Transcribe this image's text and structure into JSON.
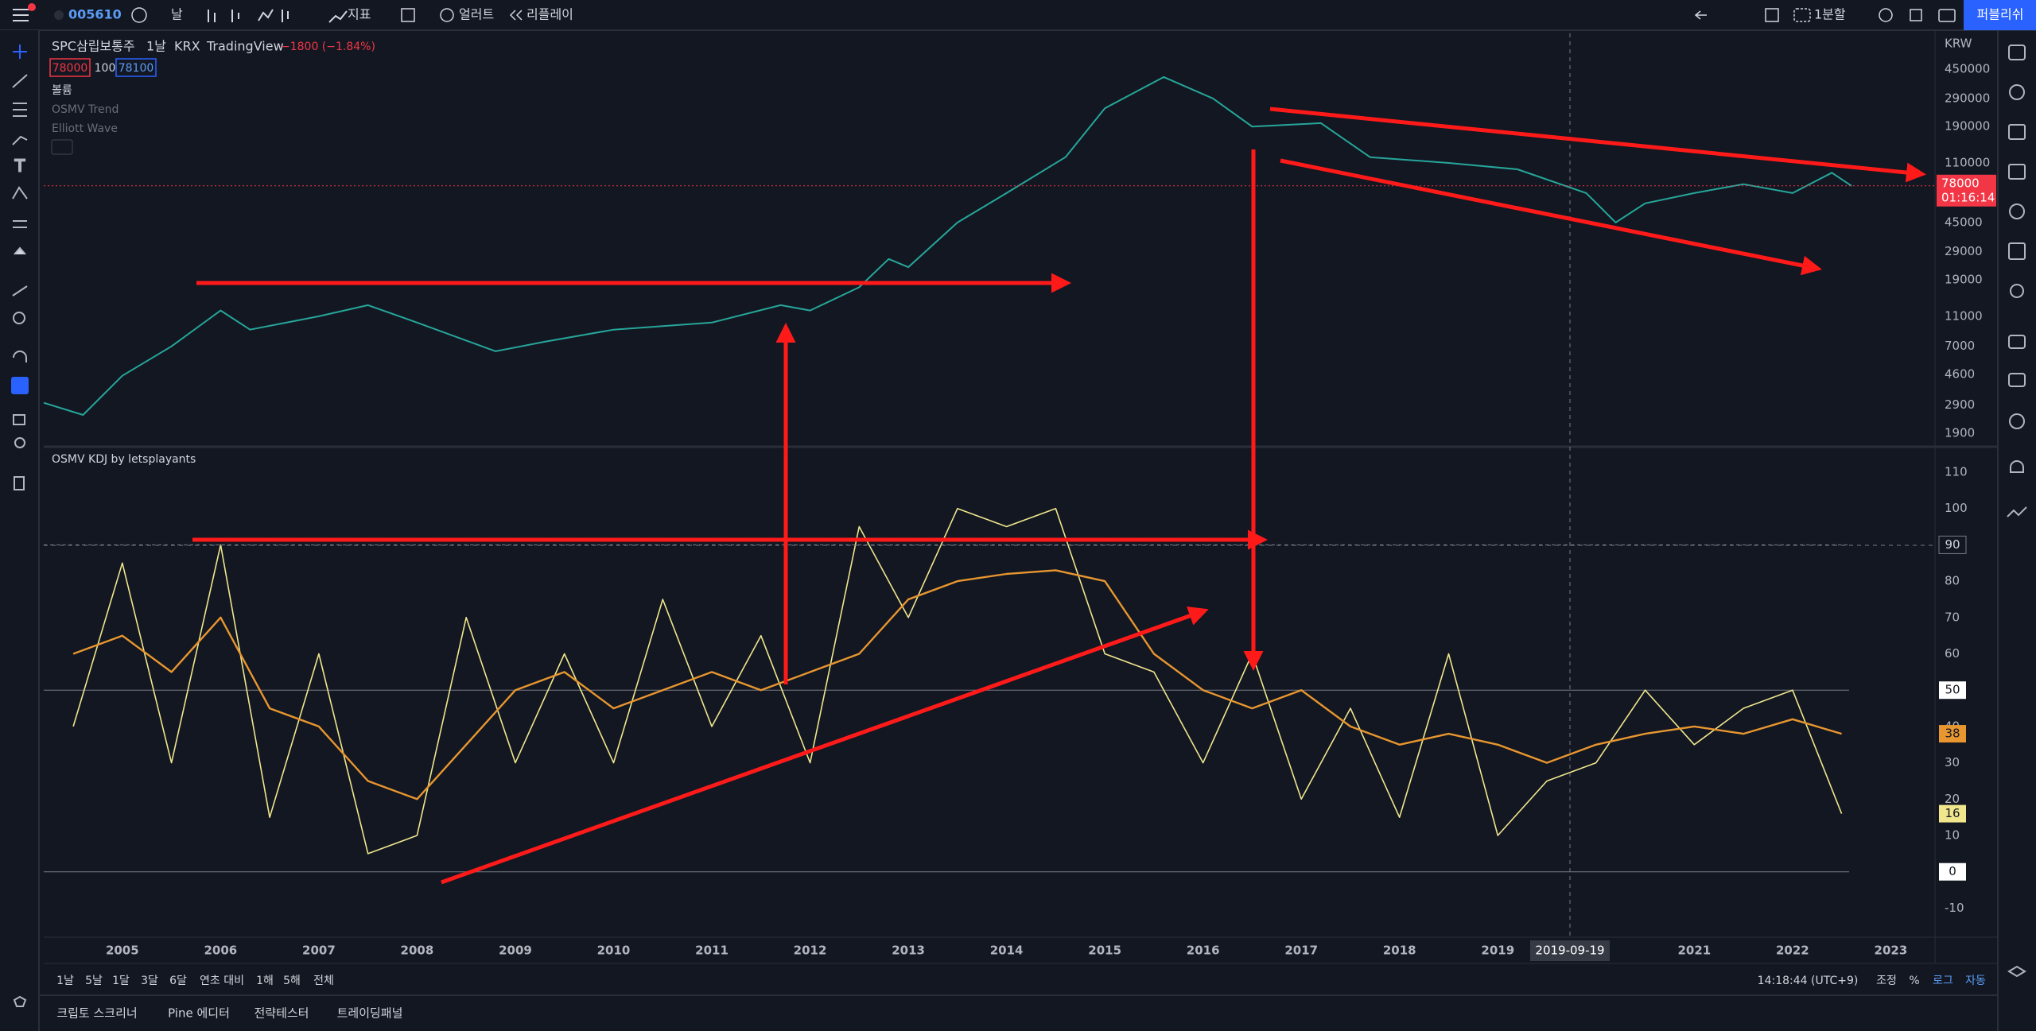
{
  "toolbar": {
    "symbol": "005610",
    "interval": "날",
    "indicators": "지표",
    "alert": "얼러트",
    "replay": "리플레이",
    "layout": "1분할",
    "publish": "퍼블리쉬"
  },
  "legend": {
    "name": "SPC삼립보통주",
    "interval": "1날",
    "exchange": "KRX",
    "source": "TradingView",
    "change": "−1800 (−1.84%)",
    "bid": "78000",
    "spread": "100",
    "ask": "78100",
    "volume": "볼륨",
    "studies": [
      "OSMV Trend",
      "Elliott Wave"
    ],
    "oscillator": "OSMV KDJ by letsplayants"
  },
  "chart_data": [
    {
      "type": "line",
      "currency": "KRW",
      "log_scale": true,
      "grid": false,
      "color": "#26a69a",
      "xlim": [
        2004.2,
        2023.45
      ],
      "ylim": [
        1550,
        770000
      ],
      "yticks": [
        450000,
        290000,
        190000,
        110000,
        45000,
        29000,
        19000,
        11000,
        7000,
        4600,
        2900,
        1900
      ],
      "x": [
        2004.2,
        2004.6,
        2005.0,
        2005.5,
        2006.0,
        2006.3,
        2007.0,
        2007.5,
        2008.0,
        2008.8,
        2009.3,
        2010.0,
        2011.0,
        2011.7,
        2012.0,
        2012.5,
        2012.8,
        2013.0,
        2013.5,
        2014.0,
        2014.6,
        2015.0,
        2015.6,
        2016.1,
        2016.5,
        2017.2,
        2017.7,
        2018.5,
        2019.2,
        2019.9,
        2020.2,
        2020.5,
        2021.0,
        2021.5,
        2022.0,
        2022.4,
        2022.6
      ],
      "values": [
        3000,
        2500,
        4500,
        7000,
        12000,
        9000,
        11000,
        13000,
        10000,
        6500,
        7500,
        9000,
        10000,
        13000,
        12000,
        17000,
        26000,
        23000,
        45000,
        70000,
        120000,
        250000,
        400000,
        290000,
        190000,
        200000,
        120000,
        110000,
        100000,
        70000,
        45000,
        60000,
        70000,
        80000,
        70000,
        95000,
        78000
      ],
      "last_price": 78000,
      "countdown": "01:16:14"
    },
    {
      "type": "line",
      "grid": false,
      "xlim": [
        2004.2,
        2023.45
      ],
      "ylim": [
        -18,
        117
      ],
      "yticks": [
        110,
        100,
        90,
        80,
        70,
        60,
        50,
        40,
        30,
        20,
        10,
        0,
        -10
      ],
      "xticks": [
        2005,
        2006,
        2007,
        2008,
        2009,
        2010,
        2011,
        2012,
        2013,
        2014,
        2015,
        2016,
        2017,
        2018,
        2019,
        2021,
        2022,
        2023
      ],
      "reference_lines": [
        90,
        50,
        0
      ],
      "x": [
        2004.5,
        2005.0,
        2005.5,
        2006.0,
        2006.5,
        2007.0,
        2007.5,
        2008.0,
        2008.5,
        2009.0,
        2009.5,
        2010.0,
        2010.5,
        2011.0,
        2011.5,
        2012.0,
        2012.5,
        2013.0,
        2013.5,
        2014.0,
        2014.5,
        2015.0,
        2015.5,
        2016.0,
        2016.5,
        2017.0,
        2017.5,
        2018.0,
        2018.5,
        2019.0,
        2019.5,
        2020.0,
        2020.5,
        2021.0,
        2021.5,
        2022.0,
        2022.5
      ],
      "series": [
        {
          "color": "#f0e68c",
          "values": [
            40,
            85,
            30,
            90,
            15,
            60,
            5,
            10,
            70,
            30,
            60,
            30,
            75,
            40,
            65,
            30,
            95,
            70,
            100,
            95,
            100,
            60,
            55,
            30,
            60,
            20,
            45,
            15,
            60,
            10,
            25,
            30,
            50,
            35,
            45,
            50,
            16
          ]
        },
        {
          "color": "#e8962f",
          "values": [
            60,
            65,
            55,
            70,
            45,
            40,
            25,
            20,
            35,
            50,
            55,
            45,
            50,
            55,
            50,
            55,
            60,
            75,
            80,
            82,
            83,
            80,
            60,
            50,
            45,
            50,
            40,
            35,
            38,
            35,
            30,
            35,
            38,
            40,
            38,
            42,
            38
          ]
        }
      ],
      "crosshair_label": "2019-09-19"
    }
  ],
  "bottom_bar": {
    "ranges": [
      "1날",
      "5날",
      "1달",
      "3달",
      "6달",
      "연초 대비",
      "1해",
      "5해",
      "전체"
    ],
    "clock": "14:18:44 (UTC+9)",
    "adjust": "조정",
    "percent": "%",
    "log": "로그",
    "auto": "자동"
  },
  "panel_tabs": [
    "크립토 스크리너",
    "Pine 에디터",
    "전략테스터",
    "트레이딩패널"
  ]
}
